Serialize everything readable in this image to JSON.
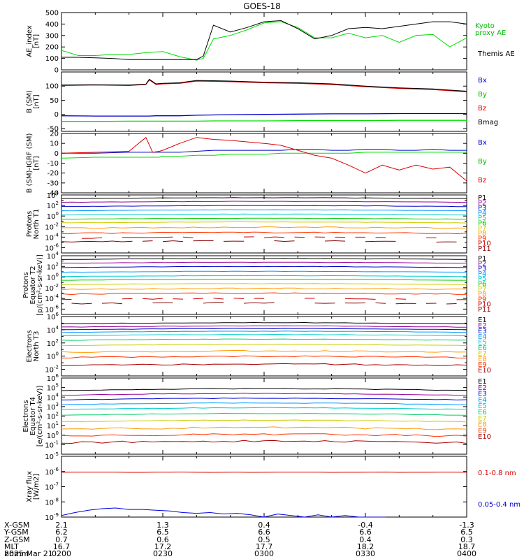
{
  "title": "GOES-18",
  "date_label": "2025 Mar 21",
  "footer": {
    "rows": [
      {
        "label": "X-GSM",
        "values": [
          "2.1",
          "1.3",
          "0.4",
          "-0.4",
          "-1.3"
        ]
      },
      {
        "label": "Y-GSM",
        "values": [
          "6.2",
          "6.5",
          "6.6",
          "6.6",
          "6.5"
        ]
      },
      {
        "label": "Z-GSM",
        "values": [
          "0.7",
          "0.6",
          "0.5",
          "0.4",
          "0.3"
        ]
      },
      {
        "label": "MLT",
        "values": [
          "16.7",
          "17.2",
          "17.7",
          "18.2",
          "18.7"
        ]
      },
      {
        "label": "hhmm",
        "values": [
          "0200",
          "0230",
          "0300",
          "0330",
          "0400"
        ]
      }
    ]
  },
  "chart_data": [
    {
      "type": "line",
      "ylabel": "AE_index [nT]",
      "ylim": [
        0,
        500
      ],
      "yticks": [
        "0",
        "100",
        "200",
        "300",
        "400",
        "500"
      ],
      "legend": [
        "Kyoto proxy AE",
        "Themis AE"
      ],
      "x_minutes": [
        0,
        5,
        10,
        15,
        20,
        25,
        30,
        35,
        40,
        42,
        45,
        50,
        55,
        60,
        65,
        70,
        75,
        80,
        85,
        90,
        95,
        100,
        105,
        110,
        115,
        120
      ],
      "series": [
        {
          "name": "Kyoto proxy AE",
          "color": "#00dd00",
          "values": [
            170,
            125,
            125,
            135,
            135,
            150,
            160,
            115,
            85,
            100,
            270,
            300,
            350,
            410,
            420,
            370,
            280,
            280,
            320,
            280,
            300,
            240,
            300,
            310,
            200,
            280
          ]
        },
        {
          "name": "Themis AE",
          "color": "#000000",
          "values": [
            110,
            110,
            105,
            100,
            90,
            90,
            90,
            90,
            90,
            120,
            390,
            330,
            370,
            420,
            430,
            360,
            270,
            300,
            360,
            370,
            360,
            380,
            400,
            420,
            420,
            400
          ]
        }
      ]
    },
    {
      "type": "line",
      "ylabel": "B (SM) [nT]",
      "ylim": [
        -60,
        150
      ],
      "yticks": [
        "-50",
        "0",
        "50",
        "100"
      ],
      "legend": [
        "Bx",
        "By",
        "Bz",
        "Bmag"
      ],
      "x_minutes": [
        0,
        10,
        20,
        25,
        26,
        28,
        30,
        35,
        40,
        45,
        50,
        60,
        70,
        80,
        90,
        100,
        110,
        120
      ],
      "series": [
        {
          "name": "Bx",
          "color": "#0000cc",
          "values": [
            -5,
            -6,
            -6,
            -6,
            -6,
            -5,
            -5,
            -5,
            -3,
            -2,
            -1,
            0,
            1,
            2,
            2,
            3,
            3,
            3
          ]
        },
        {
          "name": "By",
          "color": "#00dd00",
          "values": [
            -25,
            -25,
            -24,
            -24,
            -24,
            -24,
            -24,
            -24,
            -24,
            -23,
            -23,
            -23,
            -22,
            -22,
            -22,
            -21,
            -21,
            -21
          ]
        },
        {
          "name": "Bz",
          "color": "#dd0000",
          "values": [
            102,
            104,
            102,
            106,
            122,
            106,
            108,
            110,
            118,
            117,
            116,
            112,
            110,
            106,
            98,
            92,
            88,
            80
          ]
        },
        {
          "name": "Bmag",
          "color": "#000000",
          "values": [
            104,
            105,
            104,
            107,
            124,
            108,
            110,
            112,
            120,
            119,
            118,
            114,
            112,
            108,
            100,
            94,
            90,
            82
          ]
        }
      ]
    },
    {
      "type": "line",
      "ylabel": "B (SM)-IGRF (SM) [nT]",
      "ylim": [
        -40,
        20
      ],
      "yticks": [
        "-40",
        "-30",
        "-20",
        "-10",
        "0",
        "10",
        "20"
      ],
      "legend": [
        "Bx",
        "By",
        "Bz"
      ],
      "x_minutes": [
        0,
        10,
        20,
        25,
        27,
        29,
        30,
        35,
        40,
        45,
        50,
        60,
        65,
        70,
        75,
        80,
        85,
        90,
        95,
        100,
        105,
        110,
        115,
        120
      ],
      "series": [
        {
          "name": "Bx",
          "color": "#0000cc",
          "values": [
            0,
            0,
            1,
            1,
            1,
            1,
            1,
            1,
            2,
            3,
            3,
            3,
            3,
            4,
            4,
            3,
            3,
            4,
            4,
            3,
            3,
            4,
            3,
            3
          ]
        },
        {
          "name": "By",
          "color": "#00dd00",
          "values": [
            -5,
            -4,
            -4,
            -4,
            -4,
            -4,
            -3,
            -3,
            -2,
            -2,
            -1,
            -1,
            0,
            0,
            0,
            0,
            0,
            1,
            1,
            1,
            1,
            1,
            1,
            1
          ]
        },
        {
          "name": "Bz",
          "color": "#dd0000",
          "values": [
            0,
            1,
            2,
            16,
            1,
            2,
            3,
            10,
            16,
            14,
            13,
            10,
            8,
            3,
            -2,
            -5,
            -12,
            -20,
            -12,
            -17,
            -12,
            -16,
            -14,
            -28
          ]
        }
      ]
    },
    {
      "type": "line",
      "ylabel": "Protons North T1",
      "yscale": "log",
      "ylim_log10": [
        -7,
        4
      ],
      "ytick_exponents": [
        -6,
        -4,
        -2,
        0,
        2,
        4
      ],
      "legend": [
        "P1",
        "P2",
        "P3",
        "P4",
        "P5",
        "P6",
        "P7",
        "P8",
        "P9",
        "P10",
        "P11"
      ],
      "channels_log10_mean": [
        3.3,
        2.6,
        1.8,
        1.0,
        0.2,
        -0.6,
        -1.3,
        -2.3,
        -3.3,
        -4.2,
        -4.9
      ]
    },
    {
      "type": "line",
      "ylabel": "Protons Equator T2 [p/(cm²-s-sr-keV)]",
      "yscale": "log",
      "ylim_log10": [
        -7,
        4
      ],
      "ytick_exponents": [
        -6,
        -4,
        -2,
        0,
        2,
        4
      ],
      "legend": [
        "P1",
        "P2",
        "P3",
        "P4",
        "P5",
        "P6",
        "P7",
        "P8",
        "P9",
        "P10",
        "P11"
      ],
      "channels_log10_mean": [
        3.3,
        2.6,
        1.8,
        0.9,
        0.1,
        -0.6,
        -1.4,
        -2.3,
        -3.2,
        -4.2,
        -5.0
      ]
    },
    {
      "type": "line",
      "ylabel": "Electrons North T3",
      "yscale": "log",
      "ylim_log10": [
        -3,
        6
      ],
      "ytick_exponents": [
        -2,
        0,
        2,
        4,
        6
      ],
      "legend": [
        "E1",
        "E2",
        "E3",
        "E4",
        "E5",
        "E6",
        "E7",
        "E8",
        "E9",
        "E10"
      ],
      "channels_log10_mean": [
        4.9,
        4.4,
        4.0,
        3.6,
        3.1,
        2.4,
        1.6,
        0.6,
        -0.2,
        -1.4
      ]
    },
    {
      "type": "line",
      "ylabel": "Electrons Equator T4 [e/(cm²-s-sr-keV)]",
      "yscale": "log",
      "ylim_log10": [
        -2,
        6
      ],
      "ytick_exponents": [
        -1,
        0,
        1,
        2,
        3,
        4,
        5,
        6
      ],
      "legend": [
        "E1",
        "E2",
        "E3",
        "E4",
        "E5",
        "E6",
        "E7",
        "E8",
        "E9",
        "E10"
      ],
      "channels_log10_mean": [
        4.7,
        4.2,
        3.7,
        3.2,
        2.7,
        2.1,
        1.4,
        0.6,
        -0.1,
        -0.8
      ]
    },
    {
      "type": "line",
      "ylabel": "Xray flux [W/m2]",
      "yscale": "log",
      "ylim_log10": [
        -9,
        -5
      ],
      "ytick_exponents": [
        -9,
        -8,
        -7,
        -6,
        -5
      ],
      "legend": [
        "0.1-0.8 nm",
        "0.05-0.4 nm"
      ],
      "series": [
        {
          "name": "0.1-0.8 nm",
          "color": "#dd0000",
          "log10_mean": -6.05
        },
        {
          "name": "0.05-0.4 nm",
          "color": "#0000dd",
          "x_minutes": [
            0,
            4,
            8,
            12,
            16,
            20,
            24,
            28,
            32,
            36,
            40,
            44,
            48,
            52,
            56,
            60,
            64,
            68,
            72,
            76,
            80,
            84,
            88,
            92,
            96
          ],
          "log10_values": [
            -8.9,
            -8.7,
            -8.55,
            -8.45,
            -8.4,
            -8.5,
            -8.5,
            -8.55,
            -8.6,
            -8.7,
            -8.75,
            -8.7,
            -8.8,
            -8.75,
            -8.85,
            -9.0,
            -8.8,
            -8.9,
            -9.0,
            -8.85,
            -9.0,
            -8.9,
            -9.0,
            -9.0,
            -9.0
          ]
        }
      ]
    }
  ]
}
